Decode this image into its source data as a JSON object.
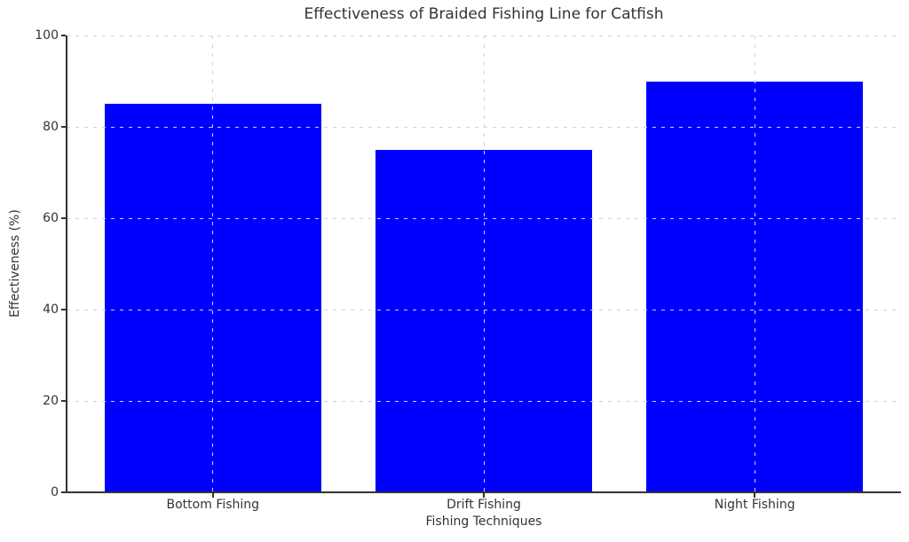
{
  "chart_data": {
    "type": "bar",
    "title": "Effectiveness of Braided Fishing Line for Catfish",
    "categories": [
      "Bottom Fishing",
      "Drift Fishing",
      "Night Fishing"
    ],
    "values": [
      85,
      75,
      90
    ],
    "xlabel": "Fishing Techniques",
    "ylabel": "Effectiveness (%)",
    "ylim": [
      0,
      100
    ],
    "yticks": [
      0,
      20,
      40,
      60,
      80,
      100
    ],
    "bar_width_fraction": 0.8,
    "grid": "dashed, both axes, drawn over bars",
    "legend": "none",
    "colors": {
      "bar": "#0000ff",
      "grid": "#d2d2d2",
      "axis": "#333333",
      "text": "#333333",
      "background": "#ffffff"
    }
  }
}
